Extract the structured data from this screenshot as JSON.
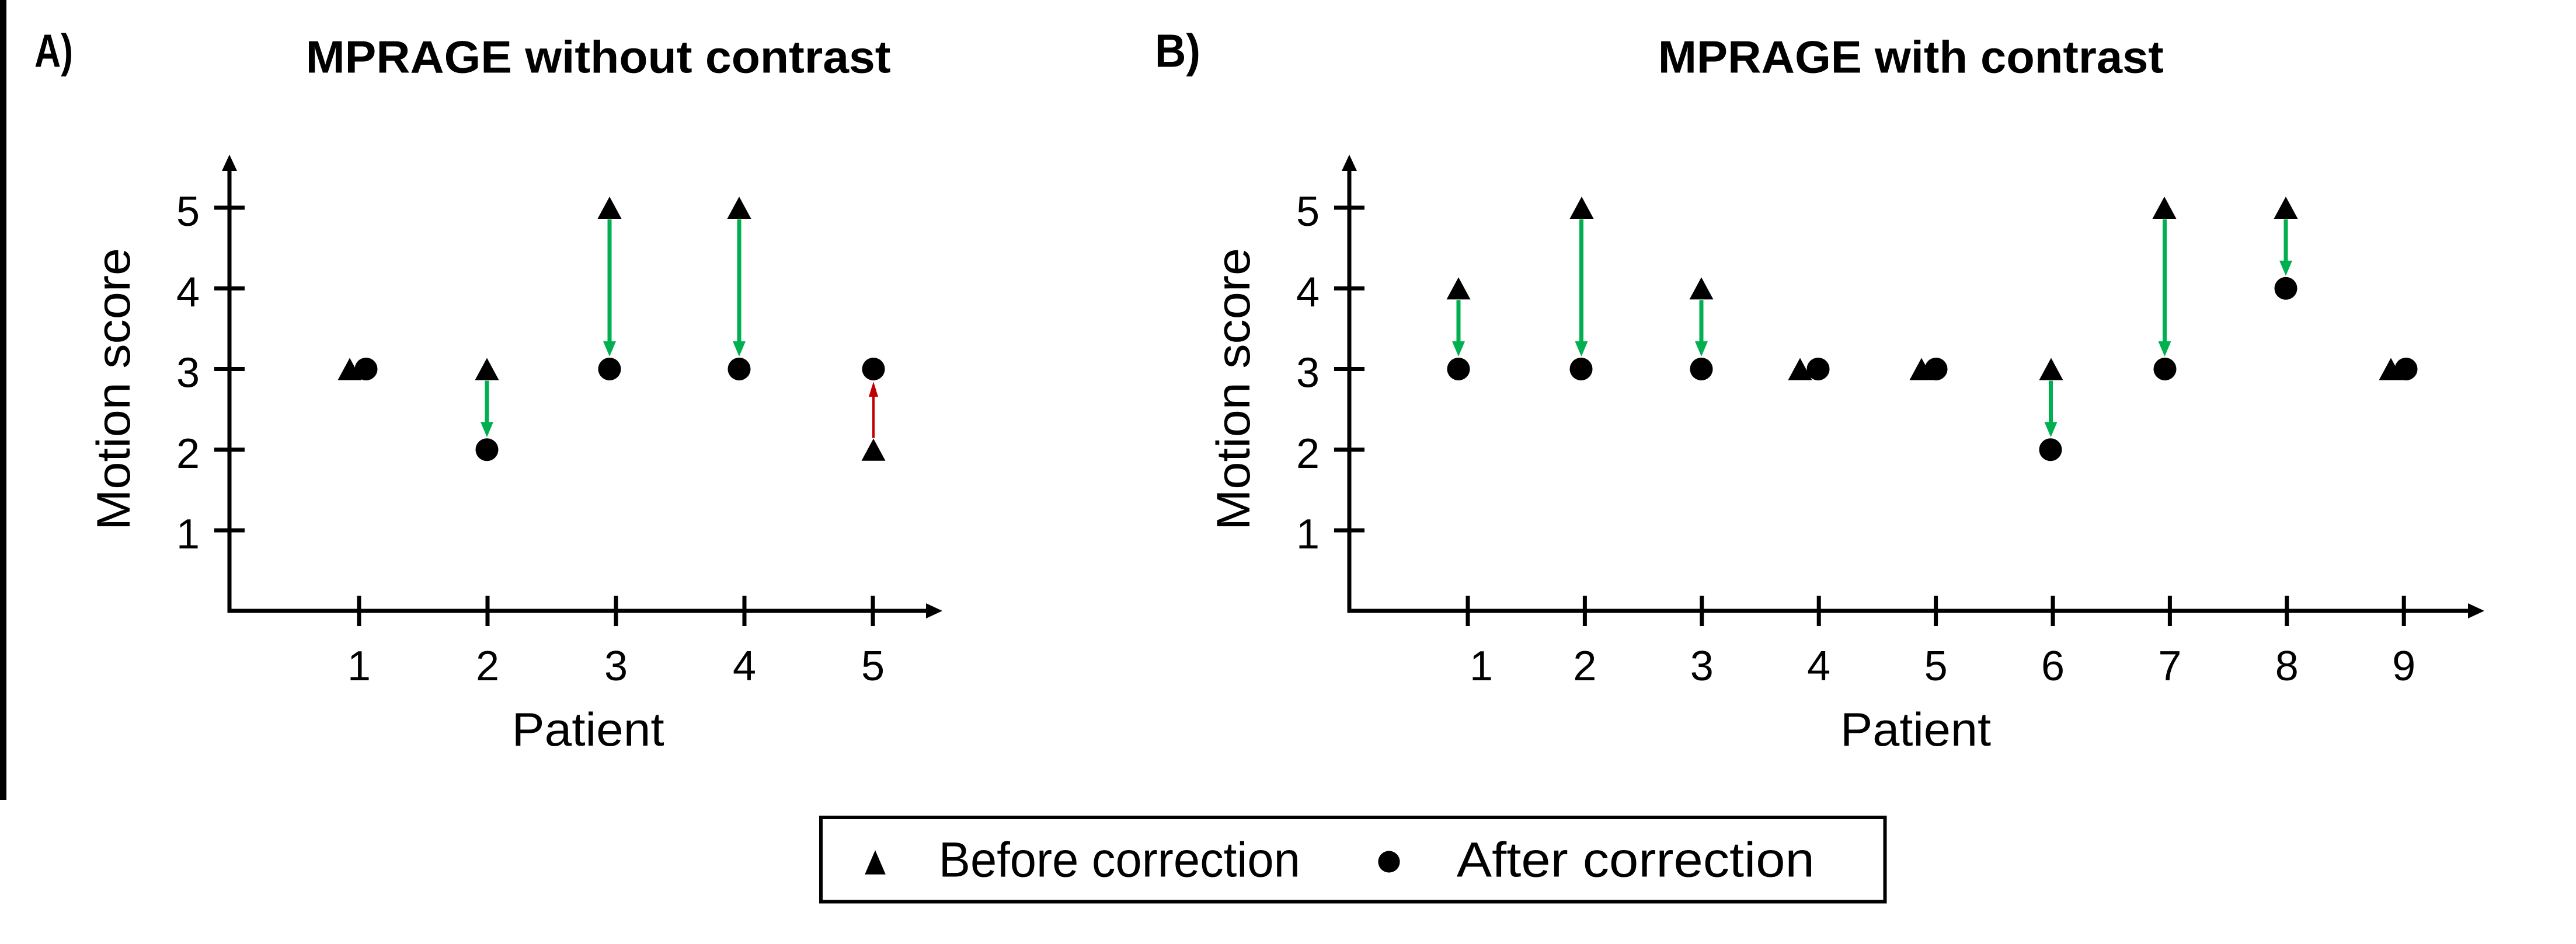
{
  "figure": {
    "background_color": "#ffffff",
    "ink_color": "#000000",
    "colors": {
      "marker": "#000000",
      "improved_arrow": "#00B050",
      "worsened_arrow": "#C00000"
    },
    "panels": [
      {
        "id": "A",
        "label": "A)",
        "title": "MPRAGE without contrast",
        "xlabel": "Patient",
        "ylabel": "Motion score",
        "x_tick_labels": [
          "1",
          "2",
          "3",
          "4",
          "5"
        ],
        "y_tick_labels": [
          "1",
          "2",
          "3",
          "4",
          "5"
        ]
      },
      {
        "id": "B",
        "label": "B)",
        "title": "MPRAGE with contrast",
        "xlabel": "Patient",
        "ylabel": "Motion score",
        "x_tick_labels": [
          "1",
          "2",
          "3",
          "4",
          "5",
          "6",
          "7",
          "8",
          "9"
        ],
        "y_tick_labels": [
          "1",
          "2",
          "3",
          "4",
          "5"
        ]
      }
    ],
    "legend": {
      "entries": [
        {
          "marker": "triangle",
          "label": "Before correction"
        },
        {
          "marker": "circle",
          "label": "After correction"
        }
      ]
    }
  },
  "chart_data": [
    {
      "type": "scatter",
      "panel": "A",
      "title": "MPRAGE without contrast",
      "xlabel": "Patient",
      "ylabel": "Motion score",
      "x": [
        1,
        2,
        3,
        4,
        5
      ],
      "ylim": [
        0,
        5.5
      ],
      "yticks": [
        1,
        2,
        3,
        4,
        5
      ],
      "series": [
        {
          "name": "Before correction",
          "marker": "triangle",
          "values": [
            3,
            3,
            5,
            5,
            2
          ]
        },
        {
          "name": "After correction",
          "marker": "circle",
          "values": [
            3,
            2,
            3,
            3,
            3
          ]
        }
      ],
      "arrows": [
        {
          "x": 2,
          "from": 3,
          "to": 2,
          "color": "#00B050"
        },
        {
          "x": 3,
          "from": 5,
          "to": 3,
          "color": "#00B050"
        },
        {
          "x": 4,
          "from": 5,
          "to": 3,
          "color": "#00B050"
        },
        {
          "x": 5,
          "from": 2,
          "to": 3,
          "color": "#C00000"
        }
      ]
    },
    {
      "type": "scatter",
      "panel": "B",
      "title": "MPRAGE with contrast",
      "xlabel": "Patient",
      "ylabel": "Motion score",
      "x": [
        1,
        2,
        3,
        4,
        5,
        6,
        7,
        8,
        9
      ],
      "ylim": [
        0,
        5.5
      ],
      "yticks": [
        1,
        2,
        3,
        4,
        5
      ],
      "series": [
        {
          "name": "Before correction",
          "marker": "triangle",
          "values": [
            4,
            5,
            4,
            3,
            3,
            3,
            5,
            5,
            3
          ]
        },
        {
          "name": "After correction",
          "marker": "circle",
          "values": [
            3,
            3,
            3,
            3,
            3,
            2,
            3,
            4,
            3
          ]
        }
      ],
      "arrows": [
        {
          "x": 1,
          "from": 4,
          "to": 3,
          "color": "#00B050"
        },
        {
          "x": 2,
          "from": 5,
          "to": 3,
          "color": "#00B050"
        },
        {
          "x": 3,
          "from": 4,
          "to": 3,
          "color": "#00B050"
        },
        {
          "x": 6,
          "from": 3,
          "to": 2,
          "color": "#00B050"
        },
        {
          "x": 7,
          "from": 5,
          "to": 3,
          "color": "#00B050"
        },
        {
          "x": 8,
          "from": 5,
          "to": 4,
          "color": "#00B050"
        }
      ]
    }
  ]
}
